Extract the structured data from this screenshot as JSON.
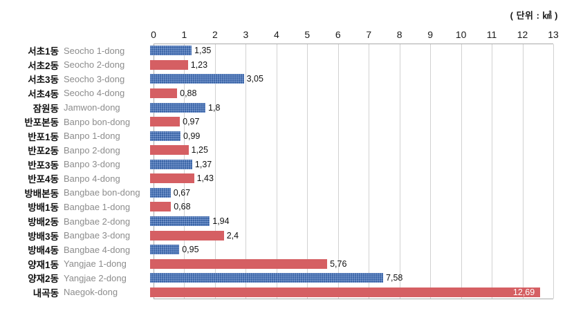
{
  "chart": {
    "unit_label": "( 단위 : ㎢ )"
  },
  "chart_data": {
    "type": "bar",
    "orientation": "horizontal",
    "title": "",
    "xlabel": "",
    "ylabel": "",
    "unit": "㎢",
    "axis": {
      "min": 0,
      "max": 13,
      "ticks": [
        0,
        1,
        2,
        3,
        4,
        5,
        6,
        7,
        8,
        9,
        10,
        11,
        12,
        13
      ]
    },
    "grid": true,
    "legend": "none",
    "colors": {
      "blue_base": "#3a64a6",
      "blue_dot": "#8aa7d9",
      "red": "#d55f63",
      "gridline": "#d1d1d1",
      "plot_border": "#a9a9a9",
      "label_ko": "#111111",
      "label_en": "#8c8c8c",
      "value_inside": "#ffffff"
    },
    "rows": [
      {
        "label_ko": "서초1동",
        "label_en": "Seocho 1-dong",
        "value": 1.35,
        "value_label": "1,35",
        "color": "blue",
        "label_inside": false
      },
      {
        "label_ko": "서초2동",
        "label_en": "Seocho 2-dong",
        "value": 1.23,
        "value_label": "1,23",
        "color": "red",
        "label_inside": false
      },
      {
        "label_ko": "서초3동",
        "label_en": "Seocho 3-dong",
        "value": 3.05,
        "value_label": "3,05",
        "color": "blue",
        "label_inside": false
      },
      {
        "label_ko": "서초4동",
        "label_en": "Seocho 4-dong",
        "value": 0.88,
        "value_label": "0,88",
        "color": "red",
        "label_inside": false
      },
      {
        "label_ko": "잠원동",
        "label_en": "Jamwon-dong",
        "value": 1.8,
        "value_label": "1,8",
        "color": "blue",
        "label_inside": false
      },
      {
        "label_ko": "반포본동",
        "label_en": "Banpo bon-dong",
        "value": 0.97,
        "value_label": "0,97",
        "color": "red",
        "label_inside": false
      },
      {
        "label_ko": "반포1동",
        "label_en": "Banpo 1-dong",
        "value": 0.99,
        "value_label": "0,99",
        "color": "blue",
        "label_inside": false
      },
      {
        "label_ko": "반포2동",
        "label_en": "Banpo 2-dong",
        "value": 1.25,
        "value_label": "1,25",
        "color": "red",
        "label_inside": false
      },
      {
        "label_ko": "반포3동",
        "label_en": "Banpo 3-dong",
        "value": 1.37,
        "value_label": "1,37",
        "color": "blue",
        "label_inside": false
      },
      {
        "label_ko": "반포4동",
        "label_en": "Banpo 4-dong",
        "value": 1.43,
        "value_label": "1,43",
        "color": "red",
        "label_inside": false
      },
      {
        "label_ko": "방배본동",
        "label_en": "Bangbae bon-dong",
        "value": 0.67,
        "value_label": "0,67",
        "color": "blue",
        "label_inside": false
      },
      {
        "label_ko": "방배1동",
        "label_en": "Bangbae 1-dong",
        "value": 0.68,
        "value_label": "0,68",
        "color": "red",
        "label_inside": false
      },
      {
        "label_ko": "방배2동",
        "label_en": "Bangbae 2-dong",
        "value": 1.94,
        "value_label": "1,94",
        "color": "blue",
        "label_inside": false
      },
      {
        "label_ko": "방배3동",
        "label_en": "Bangbae 3-dong",
        "value": 2.4,
        "value_label": "2,4",
        "color": "red",
        "label_inside": false
      },
      {
        "label_ko": "방배4동",
        "label_en": "Bangbae 4-dong",
        "value": 0.95,
        "value_label": "0,95",
        "color": "blue",
        "label_inside": false
      },
      {
        "label_ko": "양재1동",
        "label_en": "Yangjae 1-dong",
        "value": 5.76,
        "value_label": "5,76",
        "color": "red",
        "label_inside": false
      },
      {
        "label_ko": "양재2동",
        "label_en": "Yangjae 2-dong",
        "value": 7.58,
        "value_label": "7,58",
        "color": "blue",
        "label_inside": false
      },
      {
        "label_ko": "내곡동",
        "label_en": "Naegok-dong",
        "value": 12.69,
        "value_label": "12,69",
        "color": "red",
        "label_inside": true
      }
    ]
  }
}
